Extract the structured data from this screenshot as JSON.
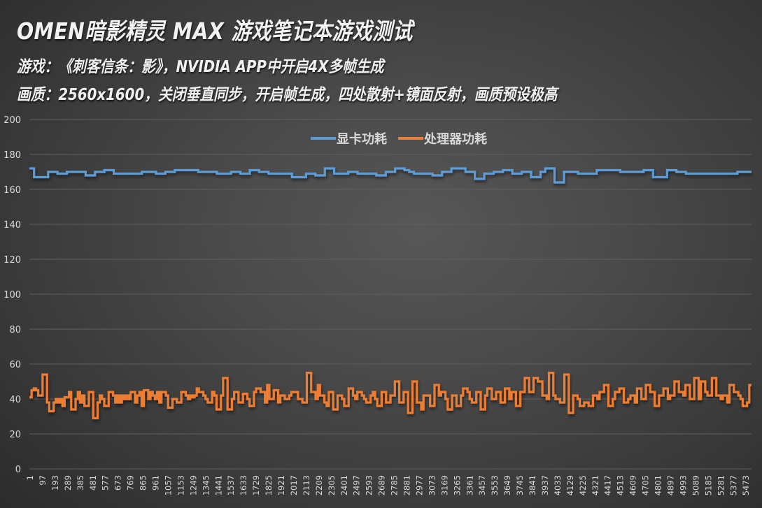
{
  "header": {
    "title": "OMEN暗影精灵 MAX 游戏笔记本游戏测试",
    "subtitle_game": "游戏：《刺客信条：影》，NVIDIA APP中开启4X多帧生成",
    "subtitle_quality": "画质：2560x1600，关闭垂直同步，开启帧生成，四处散射+镜面反射，画质预设极高"
  },
  "colors": {
    "gpu": "#5b9bd5",
    "cpu": "#ed7d31",
    "grid": "#5f5f5f",
    "tick_text": "#d9d9d9"
  },
  "chart_data": {
    "type": "line",
    "title": "OMEN暗影精灵 MAX 游戏笔记本游戏测试",
    "xlabel": "",
    "ylabel": "",
    "ylim": [
      0,
      200
    ],
    "yticks": [
      0,
      20,
      40,
      60,
      80,
      100,
      120,
      140,
      160,
      180,
      200
    ],
    "grid": true,
    "legend_position": "top",
    "x_tick_labels": [
      "1",
      "97",
      "193",
      "289",
      "385",
      "481",
      "577",
      "673",
      "769",
      "865",
      "961",
      "1057",
      "1153",
      "1249",
      "1345",
      "1441",
      "1537",
      "1633",
      "1729",
      "1825",
      "1921",
      "2017",
      "2113",
      "2209",
      "2305",
      "2401",
      "2497",
      "2593",
      "2689",
      "2785",
      "2881",
      "2977",
      "3073",
      "3169",
      "3265",
      "3361",
      "3457",
      "3553",
      "3649",
      "3745",
      "3841",
      "3937",
      "4033",
      "4129",
      "4225",
      "4321",
      "4417",
      "4513",
      "4609",
      "4705",
      "4801",
      "4897",
      "4993",
      "5089",
      "5185",
      "5281",
      "5377",
      "5473"
    ],
    "x_range": [
      1,
      5520
    ],
    "series": [
      {
        "name": "显卡功耗",
        "color": "#5b9bd5",
        "values": [
          172,
          167,
          167,
          167,
          170,
          170,
          169,
          169,
          170,
          170,
          170,
          170,
          168,
          168,
          170,
          170,
          171,
          171,
          169,
          169,
          169,
          169,
          169,
          169,
          170,
          170,
          170,
          169,
          169,
          170,
          170,
          171,
          171,
          171,
          171,
          171,
          170,
          170,
          170,
          170,
          169,
          169,
          169,
          170,
          170,
          169,
          169,
          171,
          171,
          170,
          170,
          169,
          169,
          169,
          169,
          169,
          167,
          167,
          167,
          169,
          169,
          168,
          168,
          172,
          172,
          169,
          169,
          169,
          170,
          170,
          169,
          169,
          169,
          169,
          168,
          168,
          170,
          170,
          172,
          172,
          171,
          170,
          169,
          169,
          169,
          169,
          168,
          168,
          170,
          170,
          172,
          172,
          172,
          170,
          170,
          166,
          166,
          169,
          169,
          170,
          170,
          171,
          171,
          169,
          169,
          170,
          170,
          167,
          167,
          170,
          172,
          172,
          164,
          164,
          170,
          170,
          170,
          169,
          169,
          169,
          169,
          171,
          171,
          171,
          171,
          171,
          170,
          170,
          170,
          170,
          170,
          171,
          171,
          167,
          167,
          167,
          171,
          171,
          170,
          170,
          169,
          169,
          169,
          169,
          169,
          169,
          169,
          169,
          169,
          169,
          169,
          170,
          170,
          170
        ]
      },
      {
        "name": "处理器功耗",
        "color": "#ed7d31",
        "values": [
          41,
          45,
          46,
          45,
          42,
          42,
          54,
          54,
          38,
          33,
          33,
          38,
          40,
          38,
          40,
          36,
          41,
          41,
          44,
          34,
          34,
          40,
          44,
          38,
          42,
          36,
          36,
          44,
          44,
          29,
          29,
          38,
          42,
          40,
          36,
          36,
          44,
          44,
          42,
          38,
          42,
          38,
          42,
          40,
          42,
          40,
          44,
          44,
          38,
          42,
          44,
          36,
          45,
          45,
          40,
          44,
          42,
          40,
          44,
          38,
          44,
          44,
          42,
          35,
          35,
          40,
          40,
          38,
          38,
          44,
          44,
          42,
          40,
          42,
          41,
          42,
          46,
          44,
          44,
          42,
          40,
          38,
          38,
          44,
          42,
          34,
          34,
          42,
          52,
          52,
          34,
          34,
          40,
          44,
          44,
          38,
          38,
          43,
          43,
          40,
          36,
          36,
          44,
          46,
          46,
          44,
          44,
          38,
          48,
          40,
          40,
          45,
          45,
          38,
          42,
          42,
          40,
          40,
          42,
          44,
          44,
          44,
          40,
          40,
          38,
          38,
          55,
          55,
          44,
          44,
          40,
          48,
          42,
          42,
          38,
          36,
          44,
          44,
          34,
          34,
          42,
          42,
          40,
          36,
          36,
          46,
          46,
          42,
          40,
          44,
          44,
          42,
          40,
          38,
          38,
          42,
          44,
          40,
          36,
          36,
          44,
          44,
          38,
          38,
          42,
          42,
          50,
          50,
          38,
          38,
          44,
          44,
          32,
          32,
          50,
          50,
          38,
          38,
          34,
          42,
          42,
          42,
          36,
          36,
          48,
          48,
          42,
          44,
          44,
          40,
          34,
          34,
          42,
          42,
          36,
          36,
          42,
          46,
          46,
          44,
          40,
          38,
          38,
          44,
          44,
          34,
          34,
          42,
          46,
          46,
          40,
          40,
          44,
          44,
          38,
          38,
          46,
          46,
          40,
          44,
          44,
          36,
          36,
          44,
          44,
          52,
          52,
          44,
          44,
          52,
          52,
          50,
          50,
          42,
          42,
          40,
          55,
          55,
          42,
          40,
          40,
          38,
          38,
          54,
          54,
          32,
          32,
          42,
          42,
          40,
          36,
          36,
          38,
          38,
          36,
          36,
          42,
          42,
          40,
          44,
          44,
          48,
          48,
          36,
          36,
          40,
          44,
          44,
          46,
          46,
          38,
          38,
          40,
          42,
          42,
          38,
          46,
          46,
          40,
          40,
          48,
          48,
          44,
          44,
          36,
          36,
          42,
          42,
          46,
          46,
          40,
          42,
          42,
          50,
          50,
          44,
          44,
          42,
          48,
          48,
          40,
          40,
          52,
          52,
          40,
          50,
          50,
          44,
          42,
          42,
          52,
          52,
          42,
          42,
          40,
          42,
          42,
          38,
          48,
          48,
          44,
          44,
          42,
          40,
          36,
          36,
          38,
          48
        ]
      }
    ]
  },
  "legend": {
    "gpu_label": "显卡功耗",
    "cpu_label": "处理器功耗"
  }
}
